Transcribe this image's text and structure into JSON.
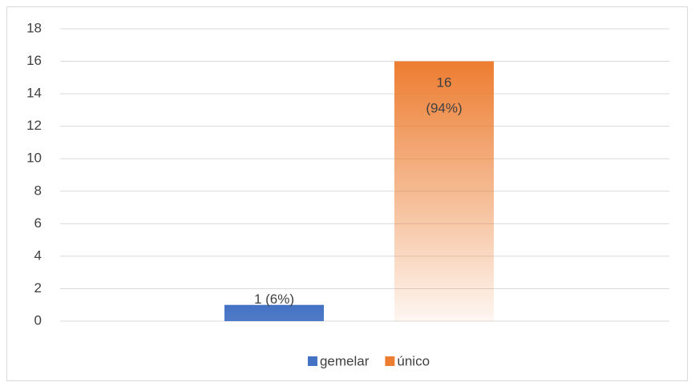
{
  "chart_data": {
    "type": "bar",
    "categories": [
      null
    ],
    "series": [
      {
        "name": "gemelar",
        "color": "#4472c4",
        "values": [
          1
        ],
        "value_labels": [
          "1 (6%)"
        ]
      },
      {
        "name": "único",
        "color": "#ed7d31",
        "values": [
          16
        ],
        "value_labels": [
          "16 (94%)"
        ]
      }
    ],
    "ylim": [
      0,
      18
    ],
    "yticks": [
      0,
      2,
      4,
      6,
      8,
      10,
      12,
      14,
      16,
      18
    ],
    "grid": true,
    "legend": "bottom"
  }
}
